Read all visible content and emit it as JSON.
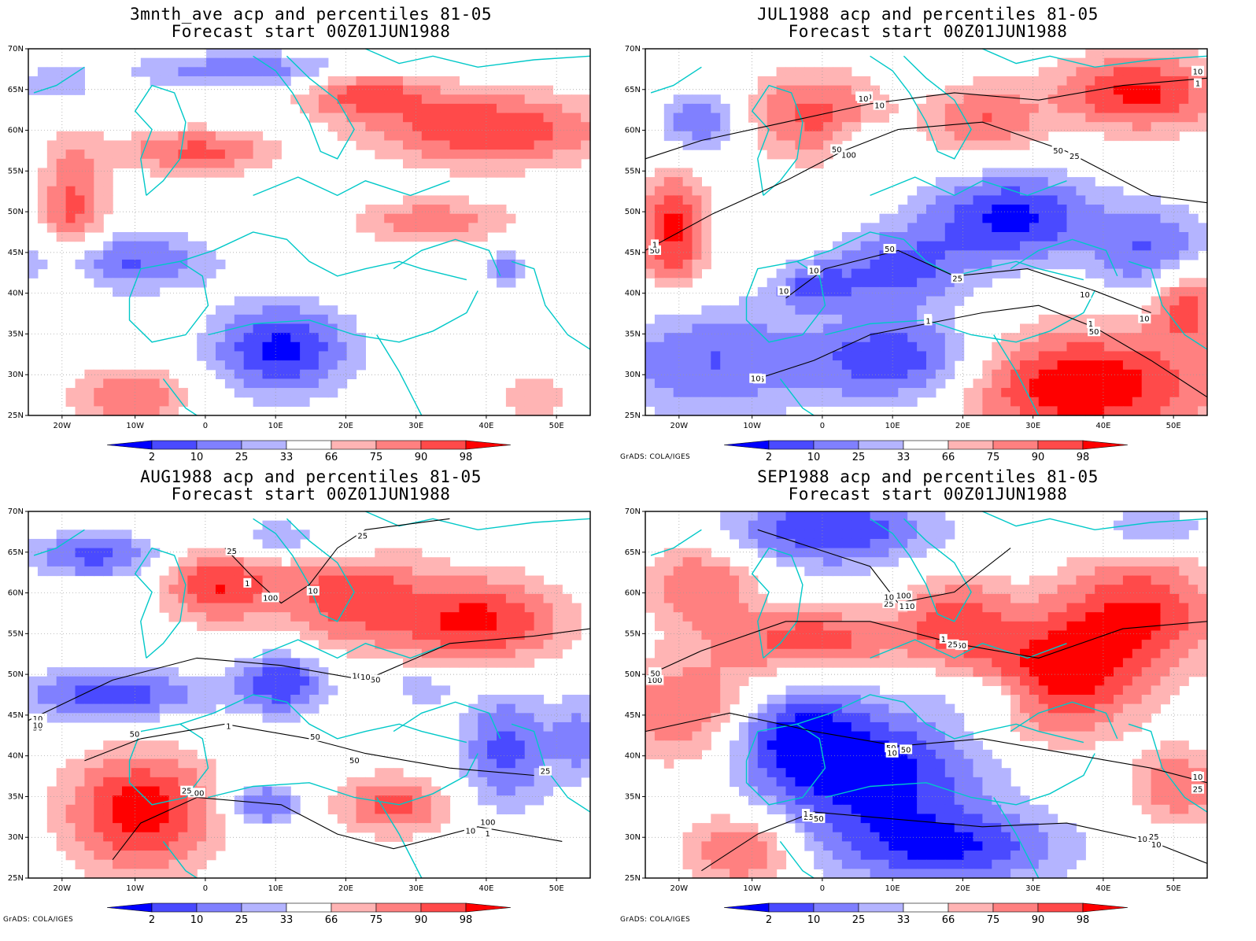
{
  "panels": [
    {
      "title": "3mnth_ave acp and percentiles 81-05",
      "subtitle": "Forecast start 00Z01JUN1988",
      "credit": ""
    },
    {
      "title": "JUL1988 acp and percentiles 81-05",
      "subtitle": "Forecast start 00Z01JUN1988",
      "credit": "GrADS: COLA/IGES"
    },
    {
      "title": "AUG1988 acp and percentiles 81-05",
      "subtitle": "Forecast start 00Z01JUN1988",
      "credit": "GrADS: COLA/IGES"
    },
    {
      "title": "SEP1988 acp and percentiles 81-05",
      "subtitle": "Forecast start 00Z01JUN1988",
      "credit": "GrADS: COLA/IGES"
    }
  ],
  "lat_labels": [
    "70N",
    "65N",
    "60N",
    "55N",
    "50N",
    "45N",
    "40N",
    "35N",
    "30N",
    "25N"
  ],
  "lon_labels": [
    "20W",
    "10W",
    "0",
    "10E",
    "20E",
    "30E",
    "40E",
    "50E"
  ],
  "colorbar": {
    "labels": [
      "2",
      "10",
      "25",
      "33",
      "66",
      "75",
      "90",
      "98"
    ],
    "colors": [
      "#0000ff",
      "#4a4aff",
      "#8080ff",
      "#b4b4ff",
      "#ffffff",
      "#ffb4b4",
      "#ff8080",
      "#ff4a4a",
      "#ff0000"
    ]
  },
  "contour_labels": [
    [],
    [
      "50",
      "100",
      "50",
      "50",
      "100",
      "50",
      "25",
      "10",
      "25",
      "10",
      "1",
      "10",
      "1",
      "10",
      "1",
      "25",
      "50",
      "10",
      "10",
      "10",
      "50",
      "1",
      "1",
      "10"
    ],
    [
      "50",
      "50",
      "100",
      "100",
      "100",
      "50",
      "100",
      "25",
      "10",
      "25",
      "10",
      "25",
      "50",
      "50",
      "25",
      "10",
      "10",
      "1",
      "1",
      "1",
      "10"
    ],
    [
      "100",
      "50",
      "100",
      "100",
      "50",
      "25",
      "25",
      "10",
      "50",
      "50",
      "10",
      "1",
      "25",
      "1",
      "50",
      "25",
      "50",
      "10",
      "25",
      "10",
      "1",
      "10",
      "1"
    ]
  ]
}
